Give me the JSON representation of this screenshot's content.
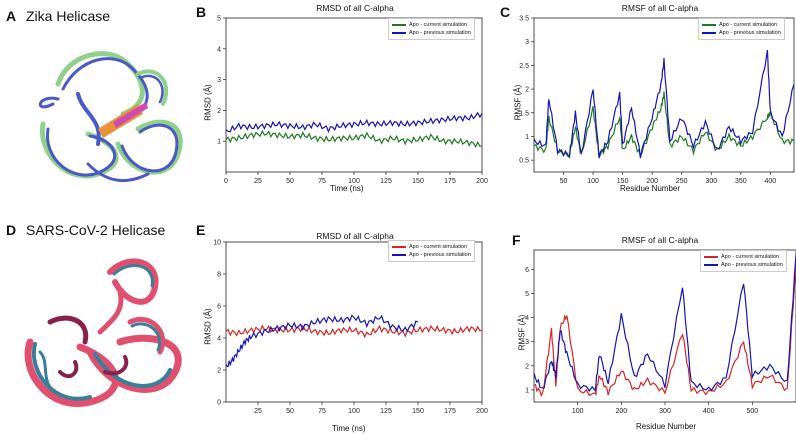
{
  "panels": {
    "A": {
      "letter": "A",
      "title": "Zika Helicase"
    },
    "B": {
      "letter": "B"
    },
    "C": {
      "letter": "C"
    },
    "D": {
      "letter": "D",
      "title": "SARS-CoV-2 Helicase"
    },
    "E": {
      "letter": "E"
    },
    "F": {
      "letter": "F"
    }
  },
  "colors": {
    "zika_current": "#1f7a1f",
    "zika_previous": "#1414b8",
    "sars_current": "#d62424",
    "sars_previous": "#1414b8",
    "zika_mol_green": "#8fd18a",
    "zika_mol_blue": "#4a58c8",
    "zika_mol_orange": "#e8933a",
    "zika_mol_magenta": "#d14ab0",
    "sars_mol_pink": "#e0506e",
    "sars_mol_teal": "#3a7f98",
    "sars_mol_dark": "#8a1f4a"
  },
  "chart_data": [
    {
      "id": "B",
      "type": "line",
      "title": "RMSD of all C-alpha",
      "xlabel": "Time (ns)",
      "ylabel": "RMSD (Å)",
      "xlim": [
        0,
        200
      ],
      "ylim": [
        0,
        5
      ],
      "xticks": [
        0,
        25,
        50,
        75,
        100,
        125,
        150,
        175,
        200
      ],
      "yticks": [
        1,
        2,
        3,
        4,
        5
      ],
      "legend": [
        "Apo - current simulation",
        "Apo - previous simulation"
      ],
      "series": [
        {
          "name": "Apo - current simulation",
          "color": "#1f7a1f",
          "x": [
            0,
            10,
            20,
            30,
            40,
            50,
            60,
            70,
            80,
            90,
            100,
            110,
            120,
            130,
            140,
            150,
            160,
            170,
            180,
            190,
            200
          ],
          "values": [
            1.05,
            1.1,
            1.2,
            1.25,
            1.2,
            1.15,
            1.2,
            1.1,
            1.05,
            1.1,
            1.1,
            1.2,
            1.0,
            1.1,
            1.0,
            1.05,
            1.15,
            1.0,
            1.0,
            0.95,
            0.85
          ]
        },
        {
          "name": "Apo - previous simulation",
          "color": "#1414b8",
          "x": [
            0,
            10,
            20,
            30,
            40,
            50,
            60,
            70,
            80,
            90,
            100,
            110,
            120,
            130,
            140,
            150,
            160,
            170,
            180,
            190,
            200
          ],
          "values": [
            1.3,
            1.5,
            1.45,
            1.5,
            1.55,
            1.5,
            1.45,
            1.55,
            1.4,
            1.5,
            1.55,
            1.6,
            1.55,
            1.6,
            1.55,
            1.6,
            1.65,
            1.7,
            1.75,
            1.75,
            1.9
          ]
        }
      ]
    },
    {
      "id": "C",
      "type": "line",
      "title": "RMSF of all C-alpha",
      "xlabel": "Residue Number",
      "ylabel": "RMSF (Å)",
      "xlim": [
        0,
        440
      ],
      "ylim": [
        0.25,
        3.5
      ],
      "xticks": [
        50,
        100,
        150,
        200,
        250,
        300,
        350,
        400
      ],
      "yticks": [
        0.5,
        1.0,
        1.5,
        2.0,
        2.5,
        3.0,
        3.5
      ],
      "legend": [
        "Apo - current simulation",
        "Apo - previous simulation"
      ],
      "series": [
        {
          "name": "Apo - current simulation",
          "color": "#1f7a1f",
          "x": [
            0,
            20,
            25,
            40,
            60,
            70,
            80,
            100,
            110,
            125,
            145,
            150,
            165,
            180,
            200,
            215,
            220,
            230,
            250,
            270,
            290,
            310,
            330,
            350,
            370,
            395,
            400,
            420,
            440
          ],
          "values": [
            0.8,
            0.7,
            1.4,
            0.7,
            0.6,
            1.2,
            0.6,
            1.6,
            0.6,
            0.8,
            1.4,
            0.7,
            1.0,
            0.6,
            1.2,
            1.6,
            1.9,
            0.8,
            1.0,
            0.7,
            1.1,
            0.7,
            1.0,
            0.8,
            1.0,
            1.4,
            1.5,
            0.9,
            0.9
          ]
        },
        {
          "name": "Apo - previous simulation",
          "color": "#1414b8",
          "x": [
            0,
            20,
            25,
            40,
            60,
            70,
            80,
            100,
            110,
            125,
            145,
            150,
            165,
            180,
            200,
            215,
            220,
            230,
            250,
            270,
            290,
            310,
            330,
            350,
            370,
            395,
            400,
            420,
            440
          ],
          "values": [
            0.9,
            0.8,
            1.8,
            0.7,
            0.6,
            1.5,
            0.6,
            2.0,
            0.6,
            0.9,
            1.9,
            0.8,
            1.6,
            0.6,
            1.4,
            2.1,
            2.6,
            0.9,
            1.4,
            0.8,
            1.3,
            0.7,
            1.2,
            0.9,
            1.1,
            2.8,
            1.5,
            1.0,
            2.1
          ]
        }
      ]
    },
    {
      "id": "E",
      "type": "line",
      "title": "RMSD of all C-alpha",
      "xlabel": "Time (ns)",
      "ylabel": "RMSD (Å)",
      "xlim": [
        0,
        200
      ],
      "ylim": [
        0,
        10
      ],
      "xticks": [
        25,
        50,
        75,
        100,
        125,
        150,
        175,
        200
      ],
      "yticks": [
        0,
        2,
        4,
        6,
        8,
        10
      ],
      "legend": [
        "Apo - current simulation",
        "Apo - previous simulation"
      ],
      "series": [
        {
          "name": "Apo - current simulation",
          "color": "#d62424",
          "x": [
            0,
            10,
            20,
            30,
            40,
            50,
            60,
            70,
            80,
            90,
            100,
            110,
            120,
            130,
            140,
            150,
            160,
            170,
            180,
            190,
            200
          ],
          "values": [
            4.4,
            4.3,
            4.5,
            4.6,
            4.5,
            4.5,
            4.6,
            4.4,
            4.3,
            4.5,
            4.5,
            4.2,
            4.6,
            4.4,
            4.3,
            4.5,
            4.6,
            4.5,
            4.4,
            4.6,
            4.5
          ]
        },
        {
          "name": "Apo - previous simulation",
          "color": "#1414b8",
          "x": [
            0,
            5,
            10,
            15,
            20,
            30,
            40,
            50,
            60,
            70,
            80,
            90,
            100,
            110,
            120,
            130,
            140,
            150
          ],
          "values": [
            2.2,
            2.6,
            3.2,
            3.8,
            4.1,
            4.4,
            4.6,
            4.8,
            4.7,
            5.0,
            5.2,
            5.1,
            5.3,
            4.9,
            5.3,
            4.7,
            4.5,
            5.0
          ]
        }
      ]
    },
    {
      "id": "F",
      "type": "line",
      "title": "RMSF of all C-alpha",
      "xlabel": "Residue Number",
      "ylabel": "RMSF (Å)",
      "xlim": [
        0,
        600
      ],
      "ylim": [
        0.5,
        6.8
      ],
      "xticks": [
        100,
        200,
        300,
        400,
        500
      ],
      "yticks": [
        1,
        2,
        3,
        4,
        5,
        6
      ],
      "legend": [
        "Apo - current simulation",
        "Apo - previous simulation"
      ],
      "series": [
        {
          "name": "Apo - current simulation",
          "color": "#d62424",
          "x": [
            0,
            20,
            40,
            50,
            60,
            75,
            100,
            140,
            150,
            170,
            200,
            230,
            260,
            300,
            340,
            360,
            400,
            440,
            480,
            500,
            540,
            580,
            600
          ],
          "values": [
            1.2,
            0.8,
            3.5,
            1.2,
            3.6,
            4.1,
            1.0,
            0.8,
            1.6,
            0.9,
            1.8,
            1.0,
            1.4,
            0.9,
            3.4,
            1.0,
            0.9,
            1.3,
            3.0,
            1.2,
            1.6,
            1.0,
            6.2
          ]
        },
        {
          "name": "Apo - previous simulation",
          "color": "#1414b8",
          "x": [
            0,
            20,
            40,
            50,
            60,
            75,
            100,
            140,
            150,
            170,
            200,
            230,
            260,
            300,
            340,
            360,
            400,
            440,
            480,
            500,
            540,
            580,
            600
          ],
          "values": [
            1.6,
            1.0,
            2.2,
            1.6,
            3.5,
            2.5,
            1.2,
            1.0,
            2.5,
            1.3,
            4.1,
            1.5,
            2.5,
            1.2,
            5.3,
            1.3,
            1.0,
            1.5,
            5.5,
            1.6,
            2.0,
            1.3,
            6.6
          ]
        }
      ]
    }
  ]
}
